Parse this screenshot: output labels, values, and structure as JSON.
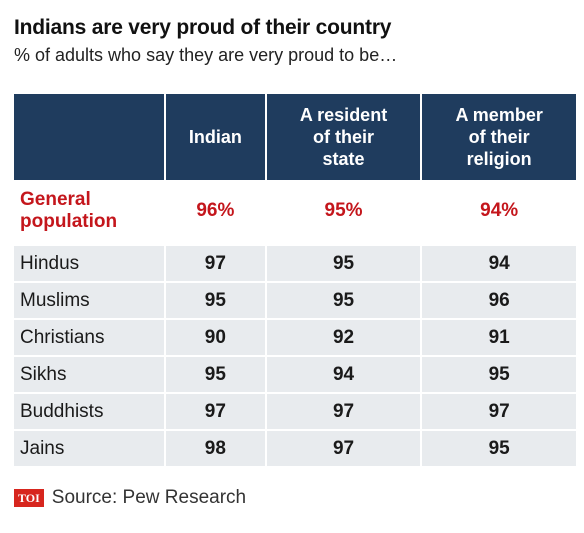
{
  "title": "Indians are very proud of their country",
  "subtitle": "% of adults who say they are very proud to be…",
  "chart_data": {
    "type": "table",
    "columns": [
      "Indian",
      "A resident of their state",
      "A member of their religion"
    ],
    "column_lines": [
      [
        "Indian"
      ],
      [
        "A resident",
        "of their",
        "state"
      ],
      [
        "A member",
        "of their",
        "religion"
      ]
    ],
    "highlight_row": {
      "label_lines": [
        "General",
        "population"
      ],
      "label": "General population",
      "values": [
        "96%",
        "95%",
        "94%"
      ]
    },
    "rows": [
      {
        "label": "Hindus",
        "values": [
          "97",
          "95",
          "94"
        ]
      },
      {
        "label": "Muslims",
        "values": [
          "95",
          "95",
          "96"
        ]
      },
      {
        "label": "Christians",
        "values": [
          "90",
          "92",
          "91"
        ]
      },
      {
        "label": "Sikhs",
        "values": [
          "95",
          "94",
          "95"
        ]
      },
      {
        "label": "Buddhists",
        "values": [
          "97",
          "97",
          "97"
        ]
      },
      {
        "label": "Jains",
        "values": [
          "98",
          "97",
          "95"
        ]
      }
    ]
  },
  "colors": {
    "header_bg": "#1f3c5e",
    "highlight_text": "#c4161c",
    "alt_row_bg": "#e8ebee"
  },
  "source": {
    "logo": "TOI",
    "text": "Source: Pew Research"
  }
}
